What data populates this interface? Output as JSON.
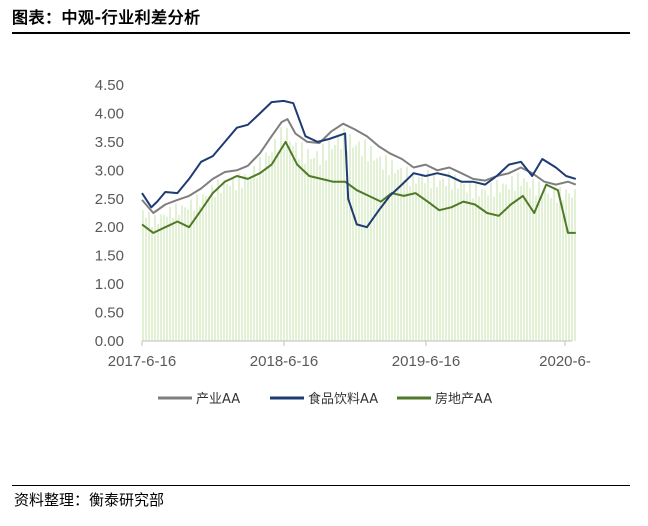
{
  "figure": {
    "title": "图表：中观-行业利差分析",
    "source": "资料整理：衡泰研究部"
  },
  "chart_data": {
    "type": "line",
    "x_tick_labels": [
      "2017-6-16",
      "2018-6-16",
      "2019-6-16",
      "2020-6-"
    ],
    "y_tick_labels": [
      "0.00",
      "0.50",
      "1.00",
      "1.50",
      "2.00",
      "2.50",
      "3.00",
      "3.50",
      "4.00",
      "4.50"
    ],
    "ylim": [
      0,
      4.5
    ],
    "xlim": [
      "2017-06-16",
      "2020-07-10"
    ],
    "grid": false,
    "legend_position": "bottom",
    "series": [
      {
        "name": "产业AA",
        "color": "#7f7f7f",
        "points": [
          [
            "2017-06-16",
            2.48
          ],
          [
            "2017-07-15",
            2.25
          ],
          [
            "2017-08-15",
            2.4
          ],
          [
            "2017-09-15",
            2.48
          ],
          [
            "2017-10-15",
            2.55
          ],
          [
            "2017-11-15",
            2.68
          ],
          [
            "2017-12-15",
            2.85
          ],
          [
            "2018-01-15",
            2.97
          ],
          [
            "2018-02-15",
            3.0
          ],
          [
            "2018-03-15",
            3.08
          ],
          [
            "2018-04-15",
            3.3
          ],
          [
            "2018-05-15",
            3.6
          ],
          [
            "2018-06-10",
            3.85
          ],
          [
            "2018-06-25",
            3.9
          ],
          [
            "2018-07-15",
            3.65
          ],
          [
            "2018-08-15",
            3.5
          ],
          [
            "2018-09-15",
            3.48
          ],
          [
            "2018-10-15",
            3.68
          ],
          [
            "2018-11-15",
            3.82
          ],
          [
            "2018-12-15",
            3.72
          ],
          [
            "2019-01-15",
            3.6
          ],
          [
            "2019-02-15",
            3.42
          ],
          [
            "2019-03-15",
            3.3
          ],
          [
            "2019-04-15",
            3.2
          ],
          [
            "2019-05-15",
            3.05
          ],
          [
            "2019-06-15",
            3.1
          ],
          [
            "2019-07-15",
            3.0
          ],
          [
            "2019-08-15",
            3.05
          ],
          [
            "2019-09-15",
            2.95
          ],
          [
            "2019-10-15",
            2.85
          ],
          [
            "2019-11-15",
            2.82
          ],
          [
            "2019-12-15",
            2.9
          ],
          [
            "2020-01-15",
            2.95
          ],
          [
            "2020-02-15",
            3.05
          ],
          [
            "2020-03-15",
            2.95
          ],
          [
            "2020-04-15",
            2.8
          ],
          [
            "2020-05-15",
            2.75
          ],
          [
            "2020-06-15",
            2.8
          ],
          [
            "2020-07-05",
            2.75
          ]
        ]
      },
      {
        "name": "食品饮料AA",
        "color": "#1f3b73",
        "points": [
          [
            "2017-06-16",
            2.6
          ],
          [
            "2017-07-10",
            2.35
          ],
          [
            "2017-07-25",
            2.45
          ],
          [
            "2017-08-15",
            2.62
          ],
          [
            "2017-09-15",
            2.6
          ],
          [
            "2017-10-15",
            2.85
          ],
          [
            "2017-11-15",
            3.15
          ],
          [
            "2017-12-15",
            3.25
          ],
          [
            "2018-01-15",
            3.5
          ],
          [
            "2018-02-15",
            3.75
          ],
          [
            "2018-03-15",
            3.8
          ],
          [
            "2018-04-15",
            4.0
          ],
          [
            "2018-05-15",
            4.2
          ],
          [
            "2018-06-15",
            4.22
          ],
          [
            "2018-07-10",
            4.18
          ],
          [
            "2018-08-10",
            3.6
          ],
          [
            "2018-09-10",
            3.5
          ],
          [
            "2018-10-10",
            3.55
          ],
          [
            "2018-11-20",
            3.65
          ],
          [
            "2018-11-28",
            2.5
          ],
          [
            "2018-12-20",
            2.05
          ],
          [
            "2019-01-15",
            2.0
          ],
          [
            "2019-02-15",
            2.3
          ],
          [
            "2019-03-15",
            2.55
          ],
          [
            "2019-04-15",
            2.75
          ],
          [
            "2019-05-15",
            2.95
          ],
          [
            "2019-06-15",
            2.9
          ],
          [
            "2019-07-15",
            2.95
          ],
          [
            "2019-08-15",
            2.9
          ],
          [
            "2019-09-15",
            2.8
          ],
          [
            "2019-10-15",
            2.8
          ],
          [
            "2019-11-15",
            2.75
          ],
          [
            "2019-12-15",
            2.9
          ],
          [
            "2020-01-15",
            3.1
          ],
          [
            "2020-02-15",
            3.15
          ],
          [
            "2020-03-15",
            2.9
          ],
          [
            "2020-04-10",
            3.2
          ],
          [
            "2020-05-15",
            3.05
          ],
          [
            "2020-06-10",
            2.9
          ],
          [
            "2020-07-05",
            2.85
          ]
        ]
      },
      {
        "name": "房地产AA",
        "color": "#4f7a28",
        "points": [
          [
            "2017-06-16",
            2.05
          ],
          [
            "2017-07-15",
            1.9
          ],
          [
            "2017-08-15",
            2.0
          ],
          [
            "2017-09-15",
            2.1
          ],
          [
            "2017-10-15",
            2.0
          ],
          [
            "2017-11-15",
            2.3
          ],
          [
            "2017-12-15",
            2.6
          ],
          [
            "2018-01-15",
            2.8
          ],
          [
            "2018-02-15",
            2.9
          ],
          [
            "2018-03-15",
            2.85
          ],
          [
            "2018-04-15",
            2.95
          ],
          [
            "2018-05-15",
            3.1
          ],
          [
            "2018-06-20",
            3.5
          ],
          [
            "2018-07-20",
            3.1
          ],
          [
            "2018-08-20",
            2.9
          ],
          [
            "2018-09-20",
            2.85
          ],
          [
            "2018-10-20",
            2.8
          ],
          [
            "2018-11-20",
            2.8
          ],
          [
            "2018-12-20",
            2.65
          ],
          [
            "2019-01-20",
            2.55
          ],
          [
            "2019-02-20",
            2.45
          ],
          [
            "2019-03-20",
            2.6
          ],
          [
            "2019-04-20",
            2.55
          ],
          [
            "2019-05-20",
            2.6
          ],
          [
            "2019-06-20",
            2.45
          ],
          [
            "2019-07-20",
            2.3
          ],
          [
            "2019-08-20",
            2.35
          ],
          [
            "2019-09-20",
            2.45
          ],
          [
            "2019-10-20",
            2.4
          ],
          [
            "2019-11-20",
            2.25
          ],
          [
            "2019-12-20",
            2.2
          ],
          [
            "2020-01-20",
            2.4
          ],
          [
            "2020-02-20",
            2.55
          ],
          [
            "2020-03-20",
            2.25
          ],
          [
            "2020-04-20",
            2.75
          ],
          [
            "2020-05-20",
            2.65
          ],
          [
            "2020-06-15",
            1.9
          ],
          [
            "2020-07-05",
            1.9
          ]
        ]
      }
    ]
  }
}
